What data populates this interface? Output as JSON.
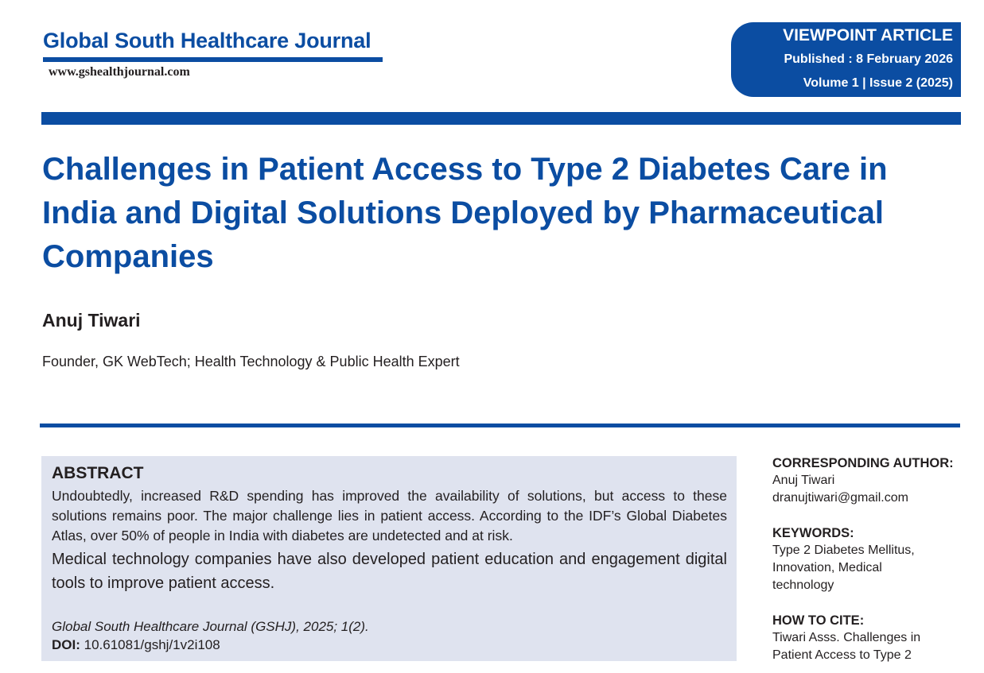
{
  "journal": {
    "name": "Global South Healthcare Journal",
    "url": "www.gshealthjournal.com"
  },
  "badge": {
    "type": "VIEWPOINT ARTICLE",
    "published": "Published : 8 February 2026",
    "volume": "Volume 1 | Issue 2 (2025)"
  },
  "article": {
    "title": "Challenges in Patient Access to Type 2 Diabetes Care in India and Digital Solutions Deployed by Pharmaceutical Companies",
    "author": "Anuj Tiwari",
    "affiliation": "Founder, GK WebTech; Health Technology & Public Health Expert"
  },
  "abstract": {
    "heading": "ABSTRACT",
    "paragraph1": "Undoubtedly, increased R&D spending has improved the availability of solutions, but access to these solutions remains poor. The major challenge lies in patient access. According to the IDF’s Global Diabetes Atlas, over 50% of people in India with diabetes are undetected and at risk.",
    "paragraph2": "Medical technology companies have also developed patient education and engagement digital tools to improve patient access.",
    "citation": "Global South Healthcare Journal (GSHJ), 2025; 1(2).",
    "doi_label": "DOI:",
    "doi_value": "10.61081/gshj/1v2i108"
  },
  "sidebar": {
    "corresponding": {
      "heading": "CORRESPONDING AUTHOR:",
      "name": "Anuj Tiwari",
      "email": "dranujtiwari@gmail.com"
    },
    "keywords": {
      "heading": "KEYWORDS:",
      "lines": [
        "Type 2 Diabetes Mellitus,",
        "Innovation, Medical",
        "technology"
      ]
    },
    "how_to_cite": {
      "heading": "HOW TO CITE:",
      "lines": [
        "Tiwari Asss. Challenges in",
        "Patient Access to Type 2"
      ]
    }
  },
  "colors": {
    "brand_blue": "#0b4da2",
    "abstract_bg": "#dfe3ef",
    "text": "#231f20"
  }
}
